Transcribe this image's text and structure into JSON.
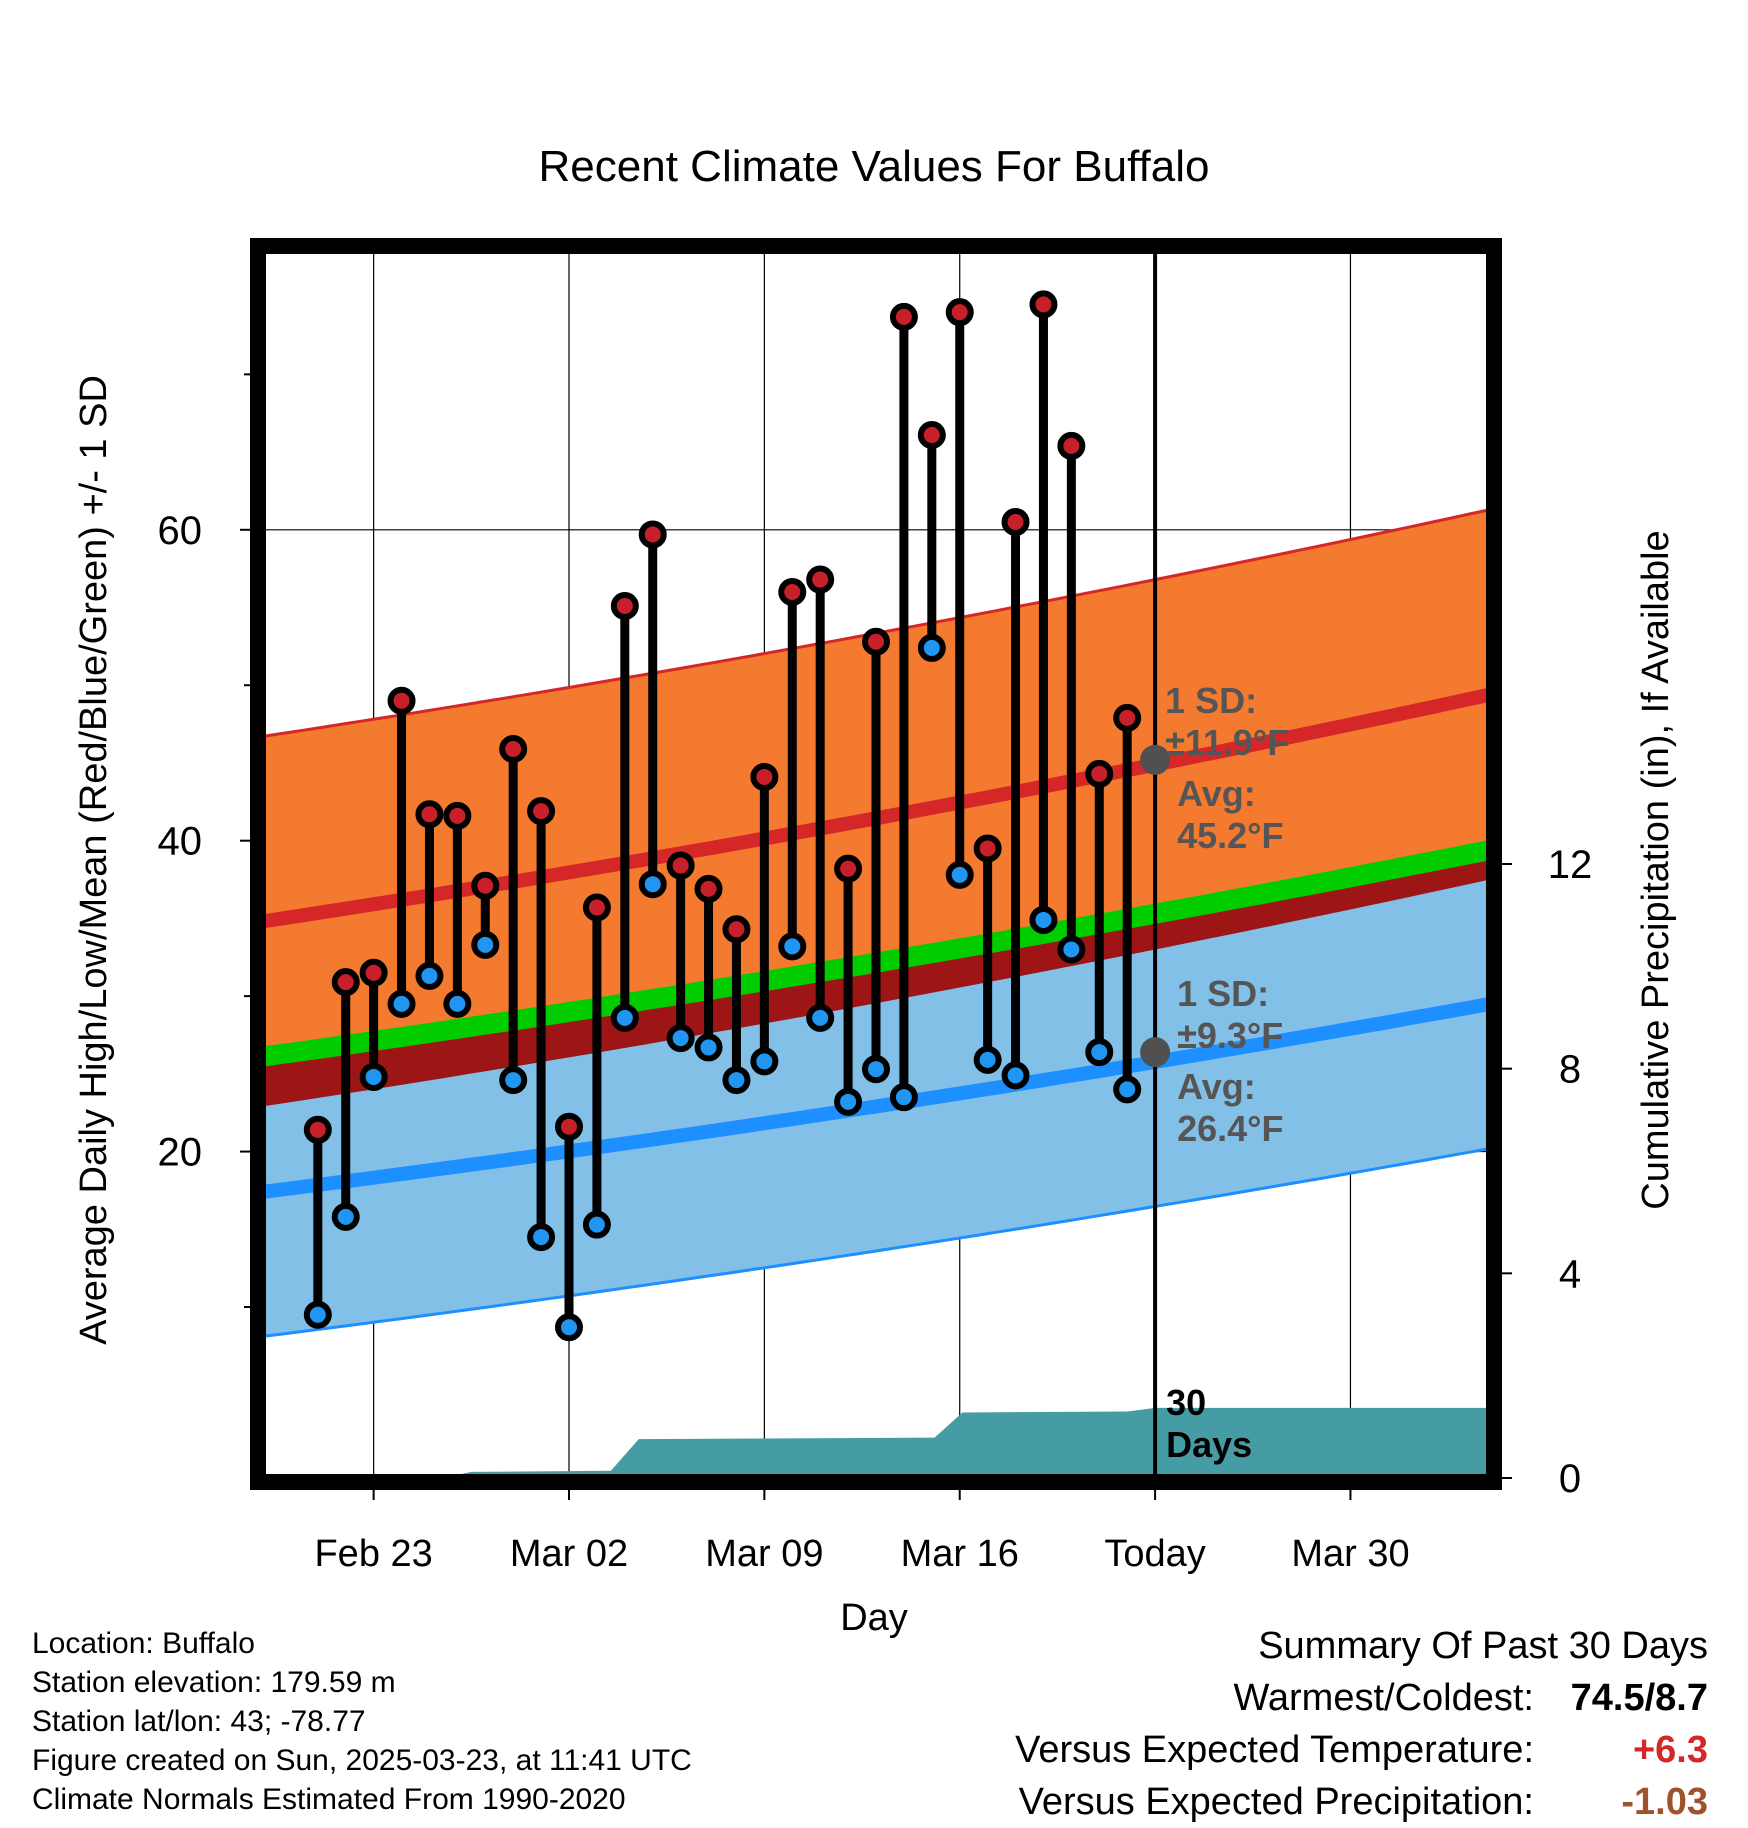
{
  "chart_data": {
    "type": "line",
    "title": "Recent Climate Values For Buffalo",
    "xlabel": "Day",
    "ylabel": "Average Daily High/Low/Mean (Red/Blue/Green) +/- 1 SD",
    "y2label": "Cumulative Precipitation (in), If Available",
    "x_range_days": [
      -32,
      12
    ],
    "y_range": [
      -1,
      78
    ],
    "y2_range": [
      0,
      24
    ],
    "x_ticks": [
      {
        "day": -28,
        "label": "Feb 23"
      },
      {
        "day": -21,
        "label": "Mar 02"
      },
      {
        "day": -14,
        "label": "Mar 09"
      },
      {
        "day": -7,
        "label": "Mar 16"
      },
      {
        "day": 0,
        "label": "Today"
      },
      {
        "day": 7,
        "label": "Mar 30"
      }
    ],
    "y_ticks": [
      20,
      40,
      60
    ],
    "y_minor_ticks": [
      10,
      30,
      50,
      70
    ],
    "y2_ticks": [
      0,
      4,
      8,
      12
    ],
    "grid": true,
    "normals": {
      "high_mean": {
        "start": 34.8,
        "end": 49.4
      },
      "high_upper": {
        "start": 46.7,
        "end": 61.3
      },
      "high_lower": {
        "start": 22.9,
        "end": 37.5
      },
      "low_mean": {
        "start": 17.4,
        "end": 29.5
      },
      "low_upper": {
        "start": 26.7,
        "end": 38.8
      },
      "low_lower": {
        "start": 8.1,
        "end": 20.2
      },
      "avg_mean": {
        "start": 26.1,
        "end": 39.4
      }
    },
    "days": [
      -30,
      -29,
      -28,
      -27,
      -26,
      -25,
      -24,
      -23,
      -22,
      -21,
      -20,
      -19,
      -18,
      -17,
      -16,
      -15,
      -14,
      -13,
      -12,
      -11,
      -10,
      -9,
      -8,
      -7,
      -6,
      -5,
      -4,
      -3,
      -2,
      -1
    ],
    "highs": [
      21.4,
      30.9,
      31.5,
      49.0,
      41.7,
      41.6,
      37.1,
      45.9,
      41.9,
      21.6,
      35.7,
      55.1,
      59.7,
      38.4,
      36.9,
      34.3,
      44.1,
      56.0,
      56.8,
      38.2,
      52.8,
      73.7,
      66.1,
      74.0,
      39.5,
      60.5,
      74.5,
      65.4,
      44.3,
      47.9
    ],
    "lows": [
      9.5,
      15.8,
      24.8,
      29.5,
      31.3,
      29.5,
      33.3,
      24.6,
      14.5,
      8.7,
      15.3,
      28.6,
      37.2,
      27.3,
      26.7,
      24.6,
      25.8,
      33.2,
      28.6,
      23.2,
      25.3,
      23.5,
      52.4,
      37.8,
      25.9,
      24.9,
      34.9,
      33.0,
      26.4,
      24.0
    ],
    "precip_cumulative": [
      {
        "day": -32,
        "value": 0
      },
      {
        "day": -25.5,
        "value": 0
      },
      {
        "day": -24.5,
        "value": 0.12
      },
      {
        "day": -19.5,
        "value": 0.14
      },
      {
        "day": -18.5,
        "value": 0.76
      },
      {
        "day": -7.9,
        "value": 0.79
      },
      {
        "day": -6.9,
        "value": 1.28
      },
      {
        "day": -1,
        "value": 1.3
      },
      {
        "day": 0,
        "value": 1.37
      },
      {
        "day": 12,
        "value": 1.37
      }
    ],
    "annotations": {
      "high_sd_label": "1 SD:",
      "high_sd_value": "±11.9°F",
      "high_avg_label": "Avg:",
      "high_avg_value": "45.2°F",
      "high_avg": 45.2,
      "low_sd_label": "1 SD:",
      "low_sd_value": "±9.3°F",
      "low_avg_label": "Avg:",
      "low_avg_value": "26.4°F",
      "low_avg": 26.4,
      "days_label_1": "30",
      "days_label_2": "Days"
    },
    "colors": {
      "high_band": "#f47a2f",
      "high_line": "#d62728",
      "low_band": "#82c0e8",
      "low_line": "#1e8fff",
      "overlap_band": "#9e1515",
      "mean_line": "#00cc00",
      "high_dot": "#c8202a",
      "low_dot": "#2095f2",
      "precip": "#469ca4",
      "avg_marker": "#505050",
      "annot_text": "#555555"
    }
  },
  "footer": {
    "location": "Location: Buffalo",
    "elevation": "Station elevation: 179.59 m",
    "latlon": "Station lat/lon: 43; -78.77",
    "created": "Figure created on Sun, 2025-03-23, at 11:41 UTC",
    "normals": "Climate Normals Estimated From 1990-2020"
  },
  "summary": {
    "title": "Summary Of Past 30 Days",
    "warmest_label": "Warmest/Coldest:",
    "warmest_value": "74.5/8.7",
    "temp_label": "Versus Expected Temperature:",
    "temp_value": "+6.3",
    "temp_color": "#d62728",
    "precip_label": "Versus Expected Precipitation:",
    "precip_value": "-1.03",
    "precip_color": "#a0522d"
  }
}
